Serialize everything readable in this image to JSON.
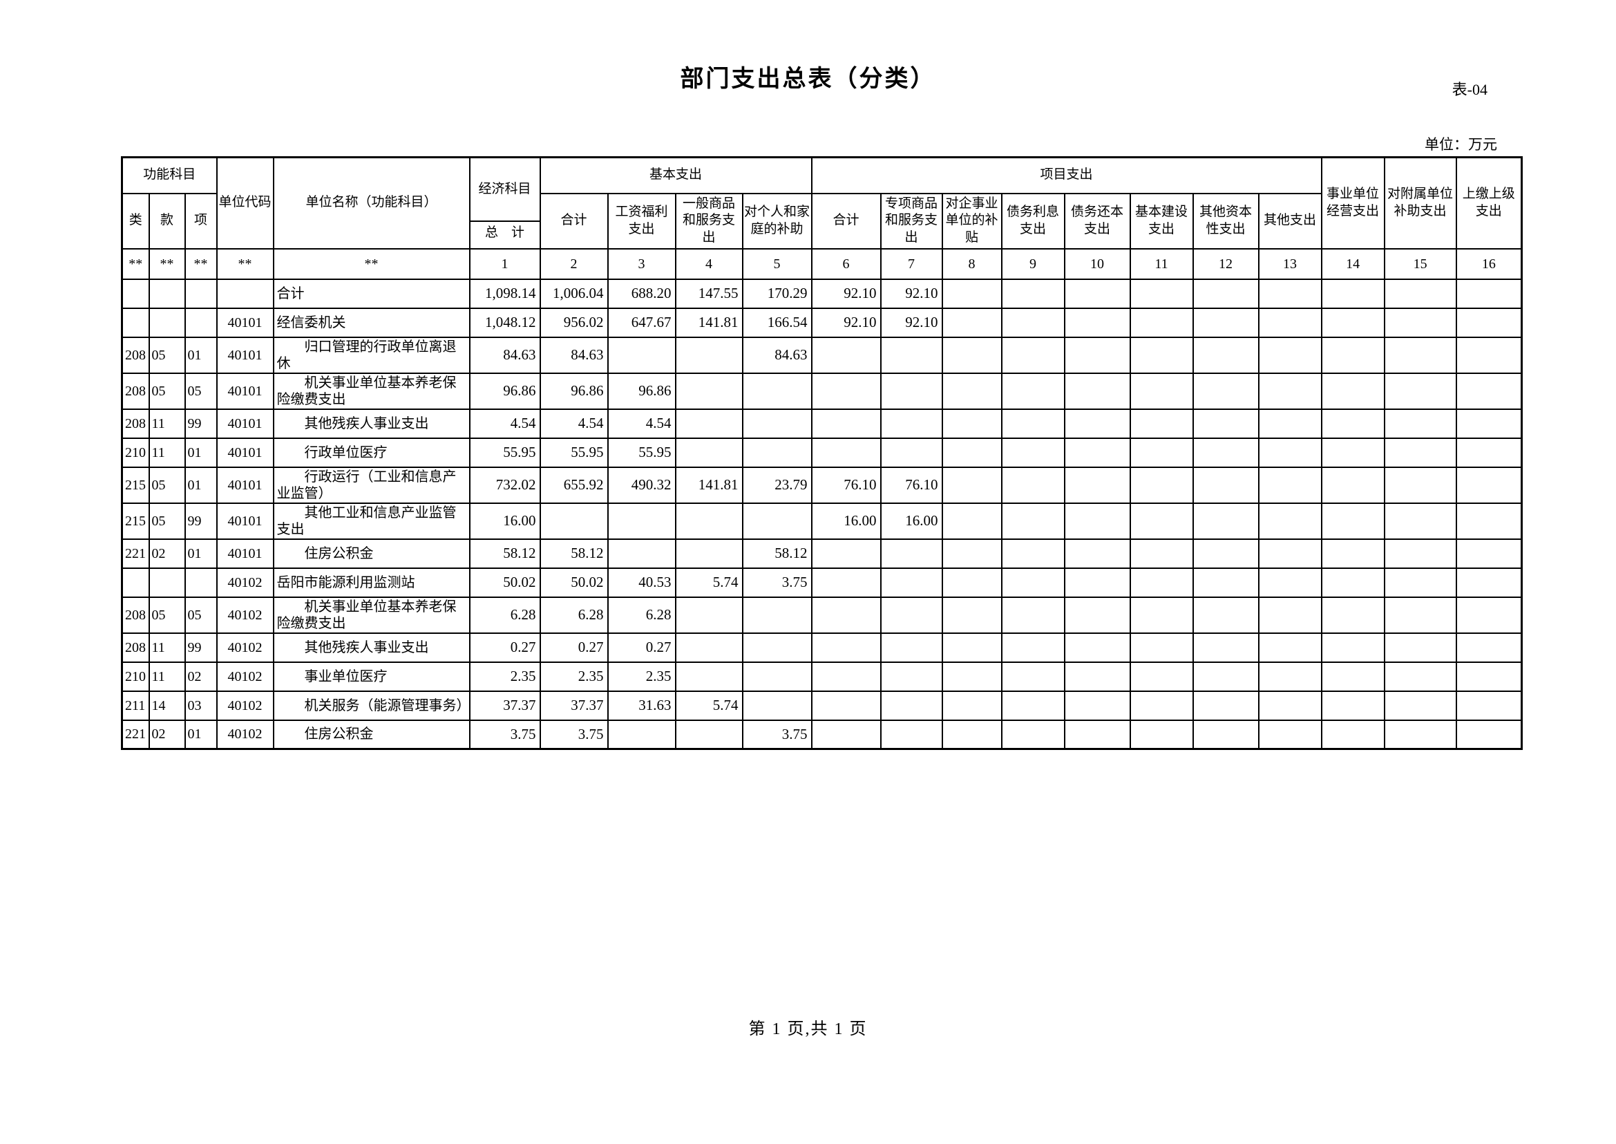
{
  "meta": {
    "form_no": "表-04",
    "title": "部门支出总表（分类）",
    "unit_note": "单位：万元",
    "page_footer": "第 1 页,共 1 页"
  },
  "header": {
    "func_subject": "功能科目",
    "func_cols": [
      "类",
      "款",
      "项"
    ],
    "unit_code": "单位代码",
    "unit_name": "单位名称（功能科目）",
    "econ_subject": "经济科目",
    "grand_total": "总　计",
    "basic_group": "基本支出",
    "basic_cols": [
      "合计",
      "工资福利支出",
      "一般商品和服务支出",
      "对个人和家庭的补助"
    ],
    "project_group": "项目支出",
    "project_cols": [
      "合计",
      "专项商品和服务支出",
      "对企事业单位的补贴",
      "债务利息支出",
      "债务还本支出",
      "基本建设支出",
      "其他资本性支出",
      "其他支出"
    ],
    "tail_cols": [
      "事业单位经营支出",
      "对附属单位补助支出",
      "上缴上级支出"
    ]
  },
  "col_numbers": [
    "**",
    "**",
    "**",
    "**",
    "**",
    "1",
    "2",
    "3",
    "4",
    "5",
    "6",
    "7",
    "8",
    "9",
    "10",
    "11",
    "12",
    "13",
    "14",
    "15",
    "16"
  ],
  "rows": [
    {
      "func": [
        "",
        "",
        ""
      ],
      "code": "",
      "name": "合计",
      "indent": false,
      "values": [
        "1,098.14",
        "1,006.04",
        "688.20",
        "147.55",
        "170.29",
        "92.10",
        "92.10",
        "",
        "",
        "",
        "",
        "",
        "",
        "",
        "",
        ""
      ]
    },
    {
      "func": [
        "",
        "",
        ""
      ],
      "code": "40101",
      "name": "经信委机关",
      "indent": false,
      "values": [
        "1,048.12",
        "956.02",
        "647.67",
        "141.81",
        "166.54",
        "92.10",
        "92.10",
        "",
        "",
        "",
        "",
        "",
        "",
        "",
        "",
        ""
      ]
    },
    {
      "func": [
        "208",
        "05",
        "01"
      ],
      "code": "40101",
      "name": "归口管理的行政单位离退休",
      "indent": true,
      "values": [
        "84.63",
        "84.63",
        "",
        "",
        "84.63",
        "",
        "",
        "",
        "",
        "",
        "",
        "",
        "",
        "",
        "",
        ""
      ]
    },
    {
      "func": [
        "208",
        "05",
        "05"
      ],
      "code": "40101",
      "name": "机关事业单位基本养老保险缴费支出",
      "indent": true,
      "values": [
        "96.86",
        "96.86",
        "96.86",
        "",
        "",
        "",
        "",
        "",
        "",
        "",
        "",
        "",
        "",
        "",
        "",
        ""
      ]
    },
    {
      "func": [
        "208",
        "11",
        "99"
      ],
      "code": "40101",
      "name": "其他残疾人事业支出",
      "indent": true,
      "values": [
        "4.54",
        "4.54",
        "4.54",
        "",
        "",
        "",
        "",
        "",
        "",
        "",
        "",
        "",
        "",
        "",
        "",
        ""
      ]
    },
    {
      "func": [
        "210",
        "11",
        "01"
      ],
      "code": "40101",
      "name": "行政单位医疗",
      "indent": true,
      "values": [
        "55.95",
        "55.95",
        "55.95",
        "",
        "",
        "",
        "",
        "",
        "",
        "",
        "",
        "",
        "",
        "",
        "",
        ""
      ]
    },
    {
      "func": [
        "215",
        "05",
        "01"
      ],
      "code": "40101",
      "name": "行政运行（工业和信息产业监管）",
      "indent": true,
      "values": [
        "732.02",
        "655.92",
        "490.32",
        "141.81",
        "23.79",
        "76.10",
        "76.10",
        "",
        "",
        "",
        "",
        "",
        "",
        "",
        "",
        ""
      ]
    },
    {
      "func": [
        "215",
        "05",
        "99"
      ],
      "code": "40101",
      "name": "其他工业和信息产业监管支出",
      "indent": true,
      "values": [
        "16.00",
        "",
        "",
        "",
        "",
        "16.00",
        "16.00",
        "",
        "",
        "",
        "",
        "",
        "",
        "",
        "",
        ""
      ]
    },
    {
      "func": [
        "221",
        "02",
        "01"
      ],
      "code": "40101",
      "name": "住房公积金",
      "indent": true,
      "values": [
        "58.12",
        "58.12",
        "",
        "",
        "58.12",
        "",
        "",
        "",
        "",
        "",
        "",
        "",
        "",
        "",
        "",
        ""
      ]
    },
    {
      "func": [
        "",
        "",
        ""
      ],
      "code": "40102",
      "name": "岳阳市能源利用监测站",
      "indent": false,
      "values": [
        "50.02",
        "50.02",
        "40.53",
        "5.74",
        "3.75",
        "",
        "",
        "",
        "",
        "",
        "",
        "",
        "",
        "",
        "",
        ""
      ]
    },
    {
      "func": [
        "208",
        "05",
        "05"
      ],
      "code": "40102",
      "name": "机关事业单位基本养老保险缴费支出",
      "indent": true,
      "values": [
        "6.28",
        "6.28",
        "6.28",
        "",
        "",
        "",
        "",
        "",
        "",
        "",
        "",
        "",
        "",
        "",
        "",
        ""
      ]
    },
    {
      "func": [
        "208",
        "11",
        "99"
      ],
      "code": "40102",
      "name": "其他残疾人事业支出",
      "indent": true,
      "values": [
        "0.27",
        "0.27",
        "0.27",
        "",
        "",
        "",
        "",
        "",
        "",
        "",
        "",
        "",
        "",
        "",
        "",
        ""
      ]
    },
    {
      "func": [
        "210",
        "11",
        "02"
      ],
      "code": "40102",
      "name": "事业单位医疗",
      "indent": true,
      "values": [
        "2.35",
        "2.35",
        "2.35",
        "",
        "",
        "",
        "",
        "",
        "",
        "",
        "",
        "",
        "",
        "",
        "",
        ""
      ]
    },
    {
      "func": [
        "211",
        "14",
        "03"
      ],
      "code": "40102",
      "name": "机关服务（能源管理事务）",
      "indent": true,
      "values": [
        "37.37",
        "37.37",
        "31.63",
        "5.74",
        "",
        "",
        "",
        "",
        "",
        "",
        "",
        "",
        "",
        "",
        "",
        ""
      ]
    },
    {
      "func": [
        "221",
        "02",
        "01"
      ],
      "code": "40102",
      "name": "住房公积金",
      "indent": true,
      "values": [
        "3.75",
        "3.75",
        "",
        "",
        "3.75",
        "",
        "",
        "",
        "",
        "",
        "",
        "",
        "",
        "",
        "",
        ""
      ]
    }
  ]
}
